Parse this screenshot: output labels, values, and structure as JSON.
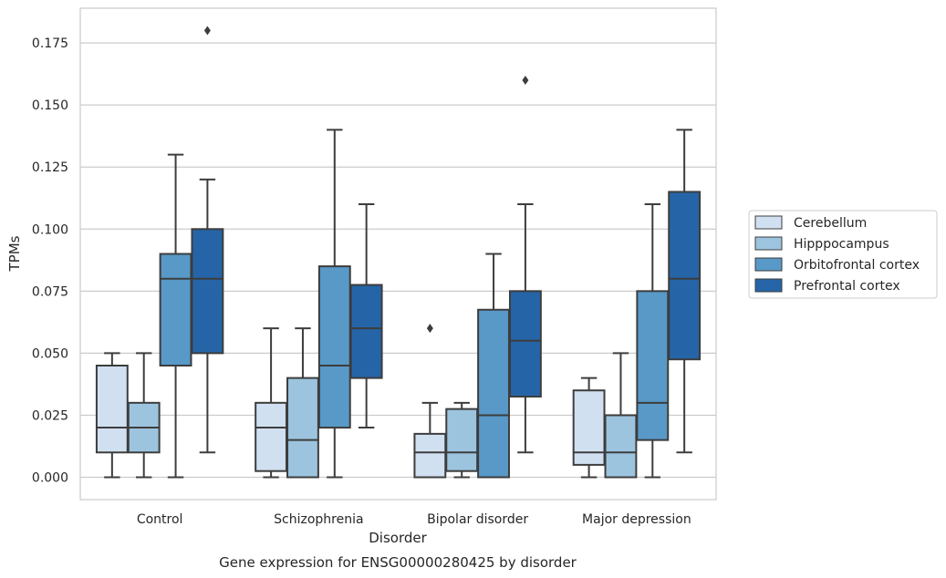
{
  "chart_data": {
    "type": "box",
    "xlabel": "Disorder",
    "ylabel": "TPMs",
    "caption": "Gene expression for ENSG00000280425 by disorder",
    "categories": [
      "Control",
      "Schizophrenia",
      "Bipolar disorder",
      "Major depression"
    ],
    "ylim": [
      -0.009,
      0.189
    ],
    "yticks": [
      "0.000",
      "0.025",
      "0.050",
      "0.075",
      "0.100",
      "0.125",
      "0.150",
      "0.175"
    ],
    "grid": true,
    "legend_position": "right",
    "series": [
      {
        "name": "Cerebellum",
        "color": "#d0e0f1",
        "boxes": [
          {
            "whislo": 0.0,
            "q1": 0.01,
            "med": 0.02,
            "q3": 0.045,
            "whishi": 0.05,
            "fliers": []
          },
          {
            "whislo": 0.0,
            "q1": 0.0025,
            "med": 0.02,
            "q3": 0.03,
            "whishi": 0.06,
            "fliers": []
          },
          {
            "whislo": 0.0,
            "q1": 0.0,
            "med": 0.01,
            "q3": 0.0175,
            "whishi": 0.03,
            "fliers": [
              0.06
            ]
          },
          {
            "whislo": 0.0,
            "q1": 0.005,
            "med": 0.01,
            "q3": 0.035,
            "whishi": 0.04,
            "fliers": []
          }
        ]
      },
      {
        "name": "Hipppocampus",
        "color": "#9dc4de",
        "boxes": [
          {
            "whislo": 0.0,
            "q1": 0.01,
            "med": 0.02,
            "q3": 0.03,
            "whishi": 0.05,
            "fliers": []
          },
          {
            "whislo": 0.0,
            "q1": 0.0,
            "med": 0.015,
            "q3": 0.04,
            "whishi": 0.06,
            "fliers": []
          },
          {
            "whislo": 0.0,
            "q1": 0.0025,
            "med": 0.01,
            "q3": 0.0275,
            "whishi": 0.03,
            "fliers": []
          },
          {
            "whislo": 0.0,
            "q1": 0.0,
            "med": 0.01,
            "q3": 0.025,
            "whishi": 0.05,
            "fliers": []
          }
        ]
      },
      {
        "name": "Orbitofrontal cortex",
        "color": "#5899c8",
        "boxes": [
          {
            "whislo": 0.0,
            "q1": 0.045,
            "med": 0.08,
            "q3": 0.09,
            "whishi": 0.13,
            "fliers": []
          },
          {
            "whislo": 0.0,
            "q1": 0.02,
            "med": 0.045,
            "q3": 0.085,
            "whishi": 0.14,
            "fliers": []
          },
          {
            "whislo": 0.0,
            "q1": 0.0,
            "med": 0.025,
            "q3": 0.0675,
            "whishi": 0.09,
            "fliers": []
          },
          {
            "whislo": 0.0,
            "q1": 0.015,
            "med": 0.03,
            "q3": 0.075,
            "whishi": 0.11,
            "fliers": []
          }
        ]
      },
      {
        "name": "Prefrontal cortex",
        "color": "#2565a7",
        "boxes": [
          {
            "whislo": 0.01,
            "q1": 0.05,
            "med": 0.08,
            "q3": 0.1,
            "whishi": 0.12,
            "fliers": [
              0.18
            ]
          },
          {
            "whislo": 0.02,
            "q1": 0.04,
            "med": 0.06,
            "q3": 0.0775,
            "whishi": 0.11,
            "fliers": []
          },
          {
            "whislo": 0.01,
            "q1": 0.0325,
            "med": 0.055,
            "q3": 0.075,
            "whishi": 0.11,
            "fliers": [
              0.16
            ]
          },
          {
            "whislo": 0.01,
            "q1": 0.0475,
            "med": 0.08,
            "q3": 0.115,
            "whishi": 0.14,
            "fliers": []
          }
        ]
      }
    ]
  }
}
